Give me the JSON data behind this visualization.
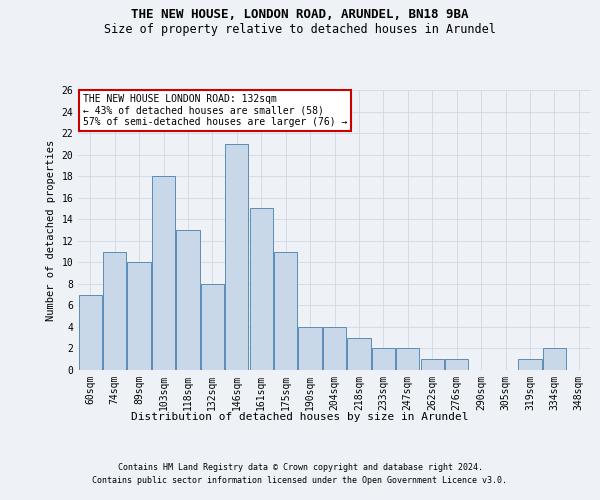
{
  "title1": "THE NEW HOUSE, LONDON ROAD, ARUNDEL, BN18 9BA",
  "title2": "Size of property relative to detached houses in Arundel",
  "xlabel": "Distribution of detached houses by size in Arundel",
  "ylabel": "Number of detached properties",
  "categories": [
    "60sqm",
    "74sqm",
    "89sqm",
    "103sqm",
    "118sqm",
    "132sqm",
    "146sqm",
    "161sqm",
    "175sqm",
    "190sqm",
    "204sqm",
    "218sqm",
    "233sqm",
    "247sqm",
    "262sqm",
    "276sqm",
    "290sqm",
    "305sqm",
    "319sqm",
    "334sqm",
    "348sqm"
  ],
  "values": [
    7,
    11,
    10,
    18,
    13,
    8,
    21,
    15,
    11,
    4,
    4,
    3,
    2,
    2,
    1,
    1,
    0,
    0,
    1,
    2,
    0
  ],
  "bar_color": "#c8d8e8",
  "bar_edge_color": "#5b8db8",
  "highlight_index": 5,
  "ylim": [
    0,
    26
  ],
  "yticks": [
    0,
    2,
    4,
    6,
    8,
    10,
    12,
    14,
    16,
    18,
    20,
    22,
    24,
    26
  ],
  "grid_color": "#d0d8e8",
  "annotation_text": "THE NEW HOUSE LONDON ROAD: 132sqm\n← 43% of detached houses are smaller (58)\n57% of semi-detached houses are larger (76) →",
  "annotation_box_color": "#ffffff",
  "annotation_box_edge": "#cc0000",
  "footer1": "Contains HM Land Registry data © Crown copyright and database right 2024.",
  "footer2": "Contains public sector information licensed under the Open Government Licence v3.0.",
  "background_color": "#eef2f7",
  "title_fontsize": 9,
  "subtitle_fontsize": 8.5,
  "ylabel_fontsize": 7.5,
  "xlabel_fontsize": 8,
  "tick_fontsize": 7,
  "annotation_fontsize": 7,
  "footer_fontsize": 6
}
